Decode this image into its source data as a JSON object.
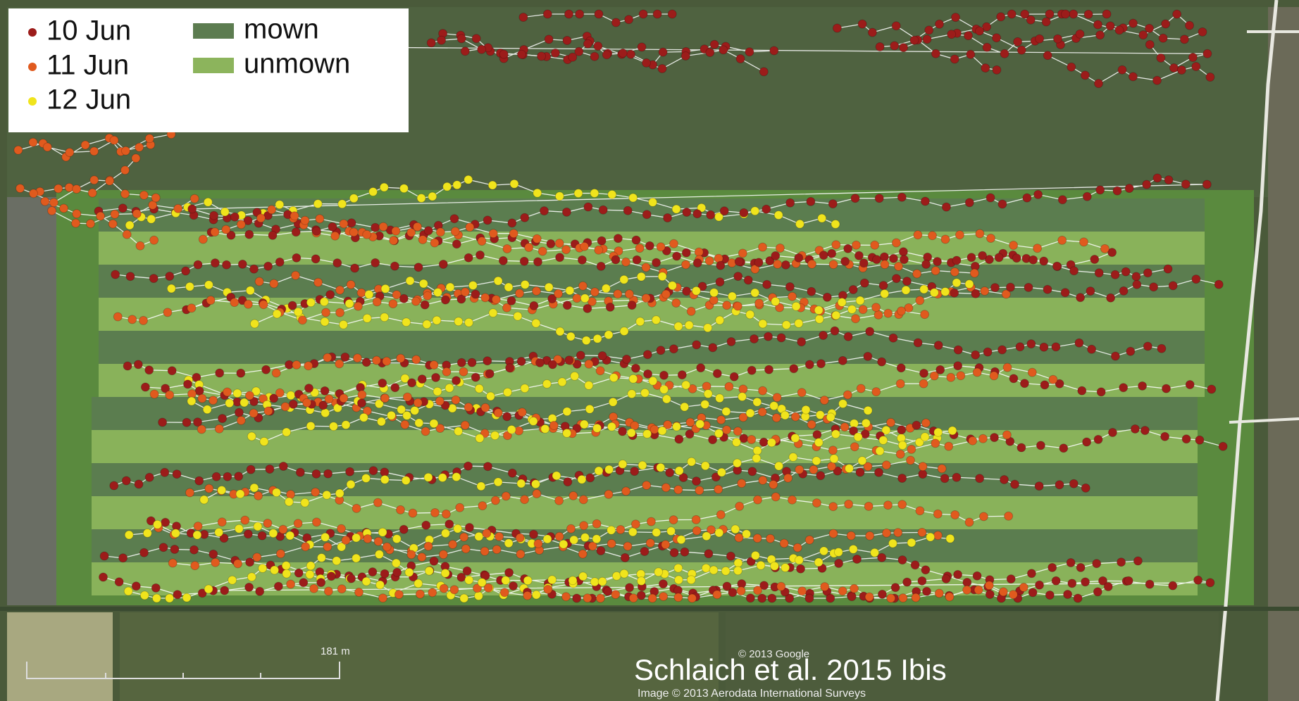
{
  "legend": {
    "tracks": [
      {
        "label": "10 Jun",
        "color": "#9c1c1a"
      },
      {
        "label": "11 Jun",
        "color": "#e05a1e"
      },
      {
        "label": "12 Jun",
        "color": "#f0e41c"
      }
    ],
    "fields": [
      {
        "label": "mown",
        "color": "#5c7c50"
      },
      {
        "label": "unmown",
        "color": "#8cb45c"
      }
    ]
  },
  "map": {
    "scale_label": "181 m",
    "copyright": "© 2013 Google",
    "imagery": "Image © 2013 Aerodata International Surveys"
  },
  "caption": "Schlaich et al. 2015 Ibis"
}
